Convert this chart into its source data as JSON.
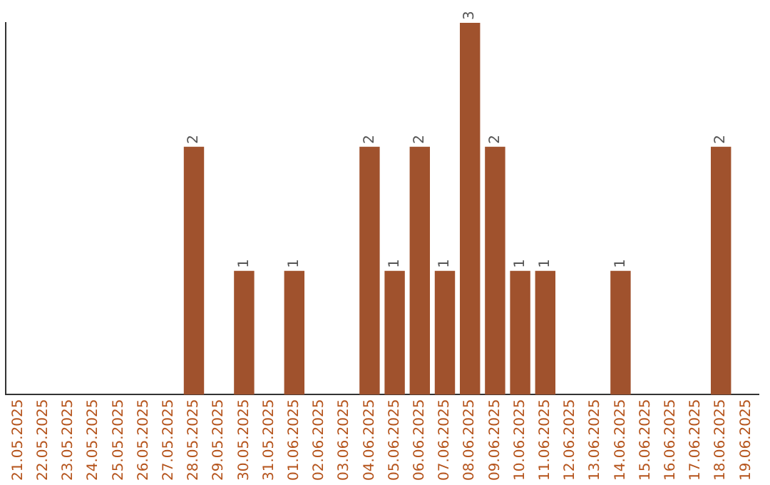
{
  "chart_data": {
    "type": "bar",
    "categories": [
      "21.05.2025",
      "22.05.2025",
      "23.05.2025",
      "24.05.2025",
      "25.05.2025",
      "26.05.2025",
      "27.05.2025",
      "28.05.2025",
      "29.05.2025",
      "30.05.2025",
      "31.05.2025",
      "01.06.2025",
      "02.06.2025",
      "03.06.2025",
      "04.06.2025",
      "05.06.2025",
      "06.06.2025",
      "07.06.2025",
      "08.06.2025",
      "09.06.2025",
      "10.06.2025",
      "11.06.2025",
      "12.06.2025",
      "13.06.2025",
      "14.06.2025",
      "15.06.2025",
      "16.06.2025",
      "17.06.2025",
      "18.06.2025",
      "19.06.2025"
    ],
    "values": [
      0,
      0,
      0,
      0,
      0,
      0,
      0,
      2,
      0,
      1,
      0,
      1,
      0,
      0,
      2,
      1,
      2,
      1,
      3,
      2,
      1,
      1,
      0,
      0,
      1,
      0,
      0,
      0,
      2,
      0
    ],
    "value_labels": [
      null,
      null,
      null,
      null,
      null,
      null,
      null,
      "2",
      null,
      "1",
      null,
      "1",
      null,
      null,
      "2",
      "1",
      "2",
      "1",
      "3",
      "2",
      "1",
      "1",
      null,
      null,
      "1",
      null,
      null,
      null,
      "2",
      null
    ],
    "color": "#a0522d",
    "grid": false,
    "legend": false,
    "tick_labels": "x"
  }
}
